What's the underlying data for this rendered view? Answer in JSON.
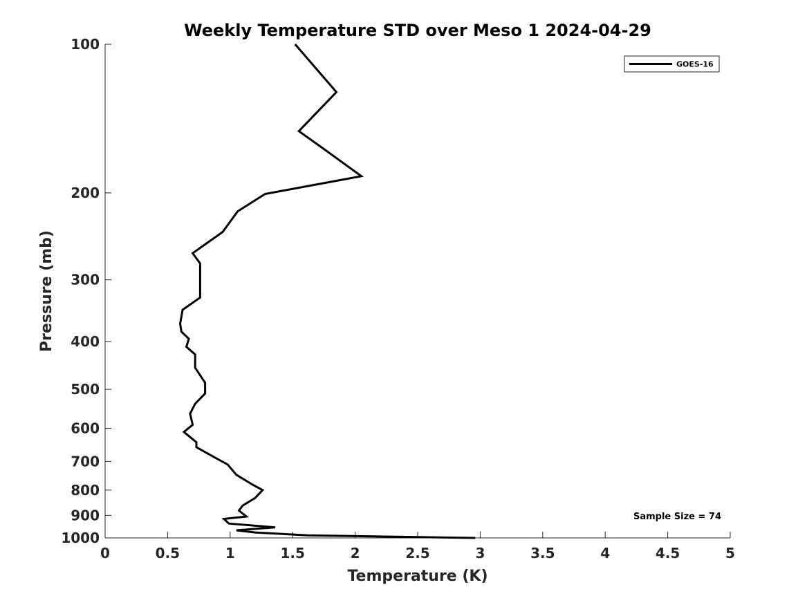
{
  "chart_data": {
    "type": "line",
    "title": "Weekly Temperature STD over Meso 1 2024-04-29",
    "xlabel": "Temperature (K)",
    "ylabel": "Pressure (mb)",
    "xlim": [
      0,
      5
    ],
    "ylim": [
      1000,
      100
    ],
    "yscale": "log",
    "x_ticks": [
      0,
      0.5,
      1,
      1.5,
      2,
      2.5,
      3,
      3.5,
      4,
      4.5,
      5
    ],
    "x_tick_labels": [
      "0",
      "0.5",
      "1",
      "1.5",
      "2",
      "2.5",
      "3",
      "3.5",
      "4",
      "4.5",
      "5"
    ],
    "y_ticks": [
      100,
      200,
      300,
      400,
      500,
      600,
      700,
      800,
      900,
      1000
    ],
    "y_tick_labels": [
      "100",
      "200",
      "300",
      "400",
      "500",
      "600",
      "700",
      "800",
      "900",
      "1000"
    ],
    "legend_position": "top-right",
    "series": [
      {
        "name": "GOES-16",
        "color": "#000000",
        "points": [
          [
            1.52,
            100
          ],
          [
            1.85,
            125
          ],
          [
            1.55,
            150
          ],
          [
            1.75,
            163
          ],
          [
            2.05,
            185
          ],
          [
            1.28,
            201
          ],
          [
            1.06,
            218
          ],
          [
            0.94,
            240
          ],
          [
            0.7,
            265
          ],
          [
            0.76,
            278
          ],
          [
            0.76,
            295
          ],
          [
            0.76,
            326
          ],
          [
            0.62,
            345
          ],
          [
            0.6,
            368
          ],
          [
            0.61,
            382
          ],
          [
            0.67,
            395
          ],
          [
            0.65,
            410
          ],
          [
            0.72,
            425
          ],
          [
            0.72,
            452
          ],
          [
            0.8,
            485
          ],
          [
            0.8,
            510
          ],
          [
            0.72,
            535
          ],
          [
            0.68,
            560
          ],
          [
            0.7,
            590
          ],
          [
            0.63,
            610
          ],
          [
            0.73,
            640
          ],
          [
            0.73,
            655
          ],
          [
            0.89,
            690
          ],
          [
            0.98,
            710
          ],
          [
            1.05,
            745
          ],
          [
            1.18,
            780
          ],
          [
            1.26,
            800
          ],
          [
            1.2,
            830
          ],
          [
            1.1,
            860
          ],
          [
            1.07,
            880
          ],
          [
            1.13,
            905
          ],
          [
            0.95,
            915
          ],
          [
            0.99,
            935
          ],
          [
            1.36,
            952
          ],
          [
            1.05,
            965
          ],
          [
            1.2,
            975
          ],
          [
            1.62,
            988
          ],
          [
            2.96,
            1000
          ]
        ]
      }
    ],
    "annotation": "Sample Size = 74"
  }
}
